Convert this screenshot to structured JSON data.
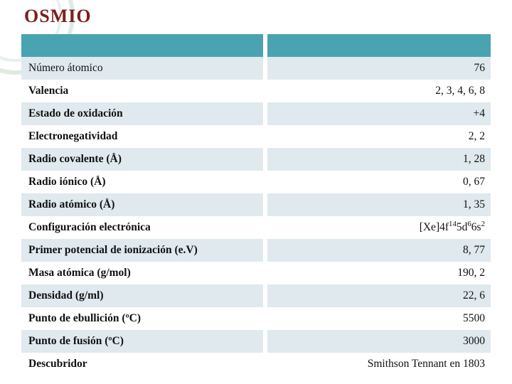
{
  "title": {
    "text": "OSMIO",
    "color": "#7a1f1f",
    "fontsize": 26
  },
  "table": {
    "header_bg": "#4aa3b1",
    "alt_bg": "#dfe9ee",
    "plain_bg": "#ffffff",
    "col_gap_color": "#ffffff",
    "rows": [
      {
        "property": "Número átomico",
        "value": "76",
        "bold_prop": false
      },
      {
        "property": "Valencia",
        "value": "2, 3, 4, 6, 8"
      },
      {
        "property": "Estado de oxidación",
        "value": "+4"
      },
      {
        "property": "Electronegatividad",
        "value": "2, 2"
      },
      {
        "property": "Radio covalente (Å)",
        "value": "1, 28"
      },
      {
        "property": "Radio iónico (Å)",
        "value": "0, 67"
      },
      {
        "property": "Radio atómico (Å)",
        "value": "1, 35"
      },
      {
        "property": "Configuración electrónica",
        "value_html": "[Xe]4f<sup>14</sup>5d<sup>6</sup>6s<sup>2</sup>"
      },
      {
        "property": "Primer potencial de ionización (e.V)",
        "value": "8, 77"
      },
      {
        "property": "Masa atómica (g/mol)",
        "value": "190, 2"
      },
      {
        "property": "Densidad (g/ml)",
        "value": "22, 6"
      },
      {
        "property": "Punto de ebullición (ºC)",
        "value": "5500"
      },
      {
        "property": "Punto de fusión (ºC)",
        "value": "3000"
      },
      {
        "property": "Descubridor",
        "value": "Smithson Tennant en 1803"
      }
    ]
  }
}
